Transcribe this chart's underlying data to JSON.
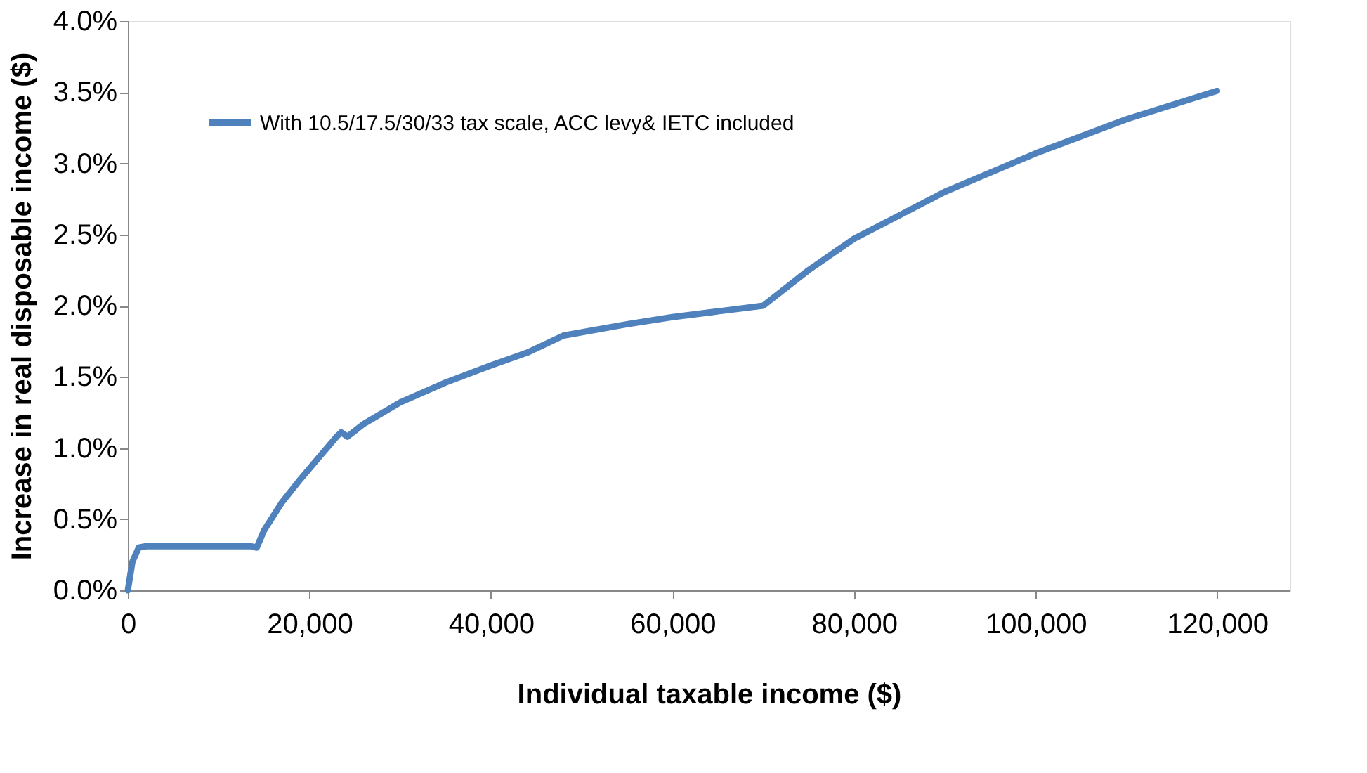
{
  "chart_data": {
    "type": "line",
    "xlabel": "Individual taxable income ($)",
    "ylabel": "Increase in real disposable  income ($)",
    "series": [
      {
        "name": "With 10.5/17.5/30/33  tax scale, ACC levy&  IETC included",
        "color": "#4f81bd",
        "x": [
          0,
          500,
          1200,
          2000,
          8000,
          13500,
          14200,
          15000,
          17000,
          19000,
          21000,
          23000,
          23500,
          24200,
          26000,
          30000,
          35000,
          40000,
          44000,
          48000,
          55000,
          60000,
          65000,
          70000,
          72000,
          75000,
          80000,
          90000,
          100000,
          110000,
          120000
        ],
        "values": [
          0,
          0.2,
          0.3,
          0.31,
          0.31,
          0.31,
          0.3,
          0.42,
          0.62,
          0.78,
          0.93,
          1.08,
          1.11,
          1.08,
          1.17,
          1.32,
          1.46,
          1.58,
          1.67,
          1.79,
          1.87,
          1.92,
          1.96,
          2.0,
          2.1,
          2.25,
          2.47,
          2.8,
          3.07,
          3.31,
          3.51
        ]
      }
    ],
    "xlim": [
      0,
      128000
    ],
    "xticks": [
      {
        "value": 0,
        "label": "0"
      },
      {
        "value": 20000,
        "label": "20,000"
      },
      {
        "value": 40000,
        "label": "40,000"
      },
      {
        "value": 60000,
        "label": "60,000"
      },
      {
        "value": 80000,
        "label": "80,000"
      },
      {
        "value": 100000,
        "label": "100,000"
      },
      {
        "value": 120000,
        "label": "120,000"
      }
    ],
    "ylim": [
      0,
      4
    ],
    "yticks": [
      {
        "value": 0,
        "label": "0.0%"
      },
      {
        "value": 0.5,
        "label": "0.5%"
      },
      {
        "value": 1,
        "label": "1.0%"
      },
      {
        "value": 1.5,
        "label": "1.5%"
      },
      {
        "value": 2,
        "label": "2.0%"
      },
      {
        "value": 2.5,
        "label": "2.5%"
      },
      {
        "value": 3,
        "label": "3.0%"
      },
      {
        "value": 3.5,
        "label": "3.5%"
      },
      {
        "value": 4,
        "label": "4.0%"
      }
    ],
    "grid": false,
    "legend": "top left",
    "marker": "none",
    "line_style": "solid"
  }
}
